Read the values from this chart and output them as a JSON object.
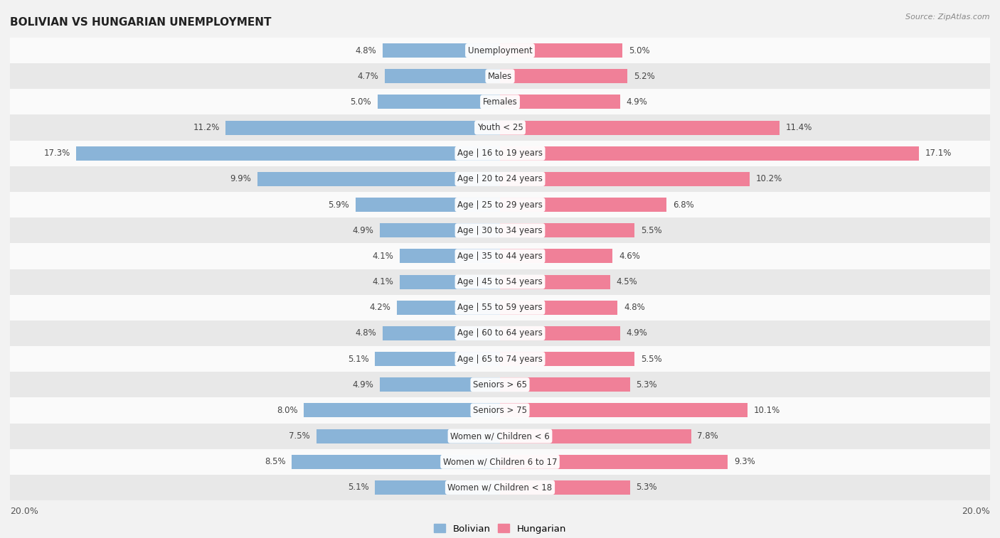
{
  "title": "BOLIVIAN VS HUNGARIAN UNEMPLOYMENT",
  "source": "Source: ZipAtlas.com",
  "categories": [
    "Unemployment",
    "Males",
    "Females",
    "Youth < 25",
    "Age | 16 to 19 years",
    "Age | 20 to 24 years",
    "Age | 25 to 29 years",
    "Age | 30 to 34 years",
    "Age | 35 to 44 years",
    "Age | 45 to 54 years",
    "Age | 55 to 59 years",
    "Age | 60 to 64 years",
    "Age | 65 to 74 years",
    "Seniors > 65",
    "Seniors > 75",
    "Women w/ Children < 6",
    "Women w/ Children 6 to 17",
    "Women w/ Children < 18"
  ],
  "bolivian": [
    4.8,
    4.7,
    5.0,
    11.2,
    17.3,
    9.9,
    5.9,
    4.9,
    4.1,
    4.1,
    4.2,
    4.8,
    5.1,
    4.9,
    8.0,
    7.5,
    8.5,
    5.1
  ],
  "hungarian": [
    5.0,
    5.2,
    4.9,
    11.4,
    17.1,
    10.2,
    6.8,
    5.5,
    4.6,
    4.5,
    4.8,
    4.9,
    5.5,
    5.3,
    10.1,
    7.8,
    9.3,
    5.3
  ],
  "bolivian_color": "#8ab4d8",
  "hungarian_color": "#f08098",
  "background_color": "#f2f2f2",
  "row_light": "#fafafa",
  "row_dark": "#e8e8e8",
  "axis_limit": 20.0,
  "bar_height": 0.55,
  "legend_labels": [
    "Bolivian",
    "Hungarian"
  ],
  "title_fontsize": 11,
  "label_fontsize": 8.5,
  "value_fontsize": 8.5
}
